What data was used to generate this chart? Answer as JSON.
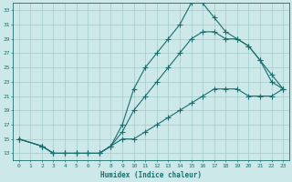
{
  "xlabel": "Humidex (Indice chaleur)",
  "bg_color": "#cce8e8",
  "grid_color": "#aacece",
  "line_color": "#1a6e6e",
  "xlim": [
    -0.5,
    23.5
  ],
  "ylim": [
    12,
    34
  ],
  "xticks": [
    0,
    1,
    2,
    3,
    4,
    5,
    6,
    7,
    8,
    9,
    10,
    11,
    12,
    13,
    14,
    15,
    16,
    17,
    18,
    19,
    20,
    21,
    22,
    23
  ],
  "yticks": [
    13,
    15,
    17,
    19,
    21,
    23,
    25,
    27,
    29,
    31,
    33
  ],
  "line1_x": [
    0,
    2,
    3,
    4,
    5,
    6,
    7,
    8,
    9,
    10,
    11,
    12,
    13,
    14,
    15,
    16,
    17,
    18,
    19,
    20,
    21,
    22,
    23
  ],
  "line1_y": [
    15,
    14,
    13,
    13,
    13,
    13,
    13,
    14,
    17,
    22,
    25,
    27,
    29,
    31,
    34,
    34,
    32,
    30,
    29,
    28,
    26,
    23,
    22
  ],
  "line2_x": [
    0,
    2,
    3,
    4,
    5,
    6,
    7,
    8,
    9,
    10,
    11,
    12,
    13,
    14,
    15,
    16,
    17,
    18,
    19,
    20,
    21,
    22,
    23
  ],
  "line2_y": [
    15,
    14,
    13,
    13,
    13,
    13,
    13,
    14,
    16,
    19,
    21,
    23,
    25,
    27,
    29,
    30,
    30,
    29,
    29,
    28,
    26,
    24,
    22
  ],
  "line3_x": [
    0,
    2,
    3,
    4,
    5,
    6,
    7,
    8,
    9,
    10,
    11,
    12,
    13,
    14,
    15,
    16,
    17,
    18,
    19,
    20,
    21,
    22,
    23
  ],
  "line3_y": [
    15,
    14,
    13,
    13,
    13,
    13,
    13,
    14,
    15,
    15,
    16,
    17,
    18,
    19,
    20,
    21,
    22,
    22,
    22,
    21,
    21,
    21,
    22
  ]
}
